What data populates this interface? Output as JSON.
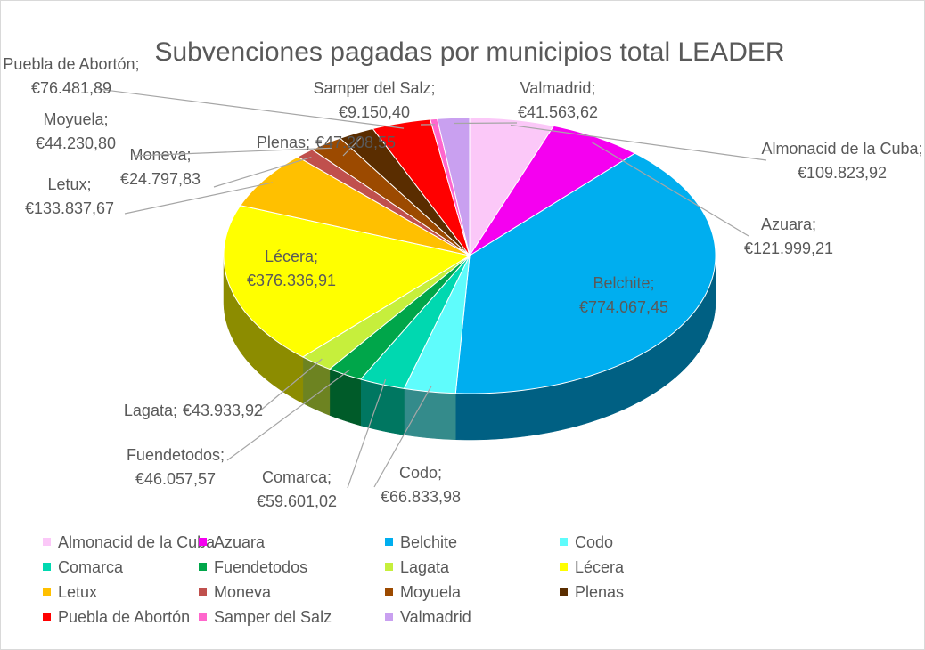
{
  "chart_data": {
    "type": "pie",
    "title": "Subvenciones pagadas por municipios total LEADER",
    "label_separator": ";",
    "categories": [
      "Almonacid de la Cuba",
      "Azuara",
      "Belchite",
      "Codo",
      "Comarca",
      "Fuendetodos",
      "Lagata",
      "Lécera",
      "Letux",
      "Moneva",
      "Moyuela",
      "Plenas",
      "Puebla de Abortón",
      "Samper del Salz",
      "Valmadrid"
    ],
    "values": [
      109823.92,
      121999.21,
      774067.45,
      66833.98,
      59601.02,
      46057.57,
      43933.92,
      376336.91,
      133837.67,
      24797.83,
      44230.8,
      47208.55,
      76481.89,
      9150.4,
      41563.62
    ],
    "value_labels": [
      "€109.823,92",
      "€121.999,21",
      "€774.067,45",
      "€66.833,98",
      "€59.601,02",
      "€46.057,57",
      "€43.933,92",
      "€376.336,91",
      "€133.837,67",
      "€24.797,83",
      "€44.230,80",
      "€47.208,55",
      "€76.481,89",
      "€9.150,40",
      "€41.563,62"
    ],
    "colors": [
      "#fbc8f8",
      "#f500f0",
      "#00aeef",
      "#5ffcfc",
      "#00d8b0",
      "#00a64a",
      "#c6ef3c",
      "#ffff00",
      "#ffc000",
      "#c0504d",
      "#9c4a00",
      "#5a2d00",
      "#ff0000",
      "#ff66cc",
      "#c9a0f0"
    ],
    "legend": "bottom"
  }
}
